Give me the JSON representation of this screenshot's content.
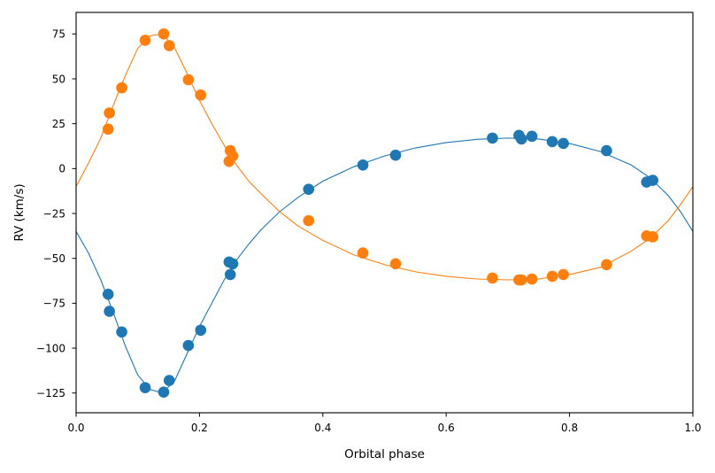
{
  "chart_data": {
    "type": "scatter",
    "title": "",
    "xlabel": "Orbital phase",
    "ylabel": "RV (km/s)",
    "xlim": [
      0.0,
      1.0
    ],
    "ylim": [
      -136,
      87
    ],
    "xticks": [
      0.0,
      0.2,
      0.4,
      0.6,
      0.8,
      1.0
    ],
    "xtick_labels": [
      "0.0",
      "0.2",
      "0.4",
      "0.6",
      "0.8",
      "1.0"
    ],
    "yticks": [
      -125,
      -100,
      -75,
      -50,
      -25,
      0,
      25,
      50,
      75
    ],
    "ytick_labels": [
      "−125",
      "−100",
      "−75",
      "−50",
      "−25",
      "0",
      "25",
      "50",
      "75"
    ],
    "grid": false,
    "legend": "none",
    "series": [
      {
        "color": "#1f77b4",
        "points": [
          {
            "x": 0.052,
            "y": -70
          },
          {
            "x": 0.054,
            "y": -79.5
          },
          {
            "x": 0.074,
            "y": -91
          },
          {
            "x": 0.112,
            "y": -122
          },
          {
            "x": 0.142,
            "y": -124.5
          },
          {
            "x": 0.151,
            "y": -118
          },
          {
            "x": 0.182,
            "y": -98.5
          },
          {
            "x": 0.202,
            "y": -90
          },
          {
            "x": 0.248,
            "y": -52
          },
          {
            "x": 0.254,
            "y": -53
          },
          {
            "x": 0.25,
            "y": -59
          },
          {
            "x": 0.377,
            "y": -11.5
          },
          {
            "x": 0.465,
            "y": 2
          },
          {
            "x": 0.518,
            "y": 7.5
          },
          {
            "x": 0.675,
            "y": 17
          },
          {
            "x": 0.718,
            "y": 18.5
          },
          {
            "x": 0.722,
            "y": 16.5
          },
          {
            "x": 0.739,
            "y": 18
          },
          {
            "x": 0.772,
            "y": 15
          },
          {
            "x": 0.79,
            "y": 14
          },
          {
            "x": 0.86,
            "y": 10
          },
          {
            "x": 0.925,
            "y": -7.5
          },
          {
            "x": 0.935,
            "y": -6.5
          }
        ],
        "model": [
          {
            "x": 0.0,
            "y": -35
          },
          {
            "x": 0.02,
            "y": -47
          },
          {
            "x": 0.04,
            "y": -62
          },
          {
            "x": 0.06,
            "y": -80
          },
          {
            "x": 0.08,
            "y": -99
          },
          {
            "x": 0.1,
            "y": -115
          },
          {
            "x": 0.12,
            "y": -123
          },
          {
            "x": 0.14,
            "y": -125
          },
          {
            "x": 0.16,
            "y": -118
          },
          {
            "x": 0.18,
            "y": -103
          },
          {
            "x": 0.2,
            "y": -88
          },
          {
            "x": 0.22,
            "y": -75
          },
          {
            "x": 0.24,
            "y": -62
          },
          {
            "x": 0.26,
            "y": -51
          },
          {
            "x": 0.28,
            "y": -42
          },
          {
            "x": 0.3,
            "y": -34
          },
          {
            "x": 0.33,
            "y": -24
          },
          {
            "x": 0.36,
            "y": -16
          },
          {
            "x": 0.4,
            "y": -7
          },
          {
            "x": 0.45,
            "y": 1
          },
          {
            "x": 0.5,
            "y": 7
          },
          {
            "x": 0.55,
            "y": 11.5
          },
          {
            "x": 0.6,
            "y": 14.5
          },
          {
            "x": 0.65,
            "y": 16.3
          },
          {
            "x": 0.7,
            "y": 17
          },
          {
            "x": 0.75,
            "y": 16.5
          },
          {
            "x": 0.8,
            "y": 14
          },
          {
            "x": 0.85,
            "y": 9.5
          },
          {
            "x": 0.9,
            "y": 2
          },
          {
            "x": 0.93,
            "y": -5
          },
          {
            "x": 0.96,
            "y": -15
          },
          {
            "x": 0.98,
            "y": -24
          },
          {
            "x": 1.0,
            "y": -35
          }
        ]
      },
      {
        "color": "#ff7f0e",
        "points": [
          {
            "x": 0.052,
            "y": 22
          },
          {
            "x": 0.054,
            "y": 31
          },
          {
            "x": 0.074,
            "y": 45
          },
          {
            "x": 0.112,
            "y": 71.5
          },
          {
            "x": 0.142,
            "y": 75
          },
          {
            "x": 0.151,
            "y": 68.5
          },
          {
            "x": 0.182,
            "y": 49.5
          },
          {
            "x": 0.202,
            "y": 41
          },
          {
            "x": 0.25,
            "y": 10
          },
          {
            "x": 0.254,
            "y": 7
          },
          {
            "x": 0.248,
            "y": 4
          },
          {
            "x": 0.377,
            "y": -29
          },
          {
            "x": 0.465,
            "y": -47
          },
          {
            "x": 0.518,
            "y": -53
          },
          {
            "x": 0.675,
            "y": -61
          },
          {
            "x": 0.718,
            "y": -62
          },
          {
            "x": 0.722,
            "y": -62
          },
          {
            "x": 0.739,
            "y": -61.5
          },
          {
            "x": 0.772,
            "y": -60
          },
          {
            "x": 0.79,
            "y": -59
          },
          {
            "x": 0.86,
            "y": -53.5
          },
          {
            "x": 0.925,
            "y": -37.5
          },
          {
            "x": 0.935,
            "y": -38
          }
        ],
        "model": [
          {
            "x": 0.0,
            "y": -10
          },
          {
            "x": 0.02,
            "y": 3
          },
          {
            "x": 0.04,
            "y": 17
          },
          {
            "x": 0.06,
            "y": 35
          },
          {
            "x": 0.08,
            "y": 52
          },
          {
            "x": 0.1,
            "y": 67
          },
          {
            "x": 0.12,
            "y": 74
          },
          {
            "x": 0.14,
            "y": 75
          },
          {
            "x": 0.16,
            "y": 67
          },
          {
            "x": 0.18,
            "y": 53
          },
          {
            "x": 0.2,
            "y": 38
          },
          {
            "x": 0.22,
            "y": 25
          },
          {
            "x": 0.24,
            "y": 13
          },
          {
            "x": 0.26,
            "y": 2
          },
          {
            "x": 0.28,
            "y": -7
          },
          {
            "x": 0.3,
            "y": -14
          },
          {
            "x": 0.33,
            "y": -24
          },
          {
            "x": 0.36,
            "y": -32
          },
          {
            "x": 0.4,
            "y": -40
          },
          {
            "x": 0.45,
            "y": -48
          },
          {
            "x": 0.5,
            "y": -53.5
          },
          {
            "x": 0.55,
            "y": -57.5
          },
          {
            "x": 0.6,
            "y": -60
          },
          {
            "x": 0.65,
            "y": -61.5
          },
          {
            "x": 0.7,
            "y": -62
          },
          {
            "x": 0.75,
            "y": -61.5
          },
          {
            "x": 0.8,
            "y": -59
          },
          {
            "x": 0.85,
            "y": -55
          },
          {
            "x": 0.9,
            "y": -46
          },
          {
            "x": 0.93,
            "y": -39
          },
          {
            "x": 0.96,
            "y": -29
          },
          {
            "x": 0.98,
            "y": -20
          },
          {
            "x": 1.0,
            "y": -10
          }
        ]
      }
    ]
  }
}
